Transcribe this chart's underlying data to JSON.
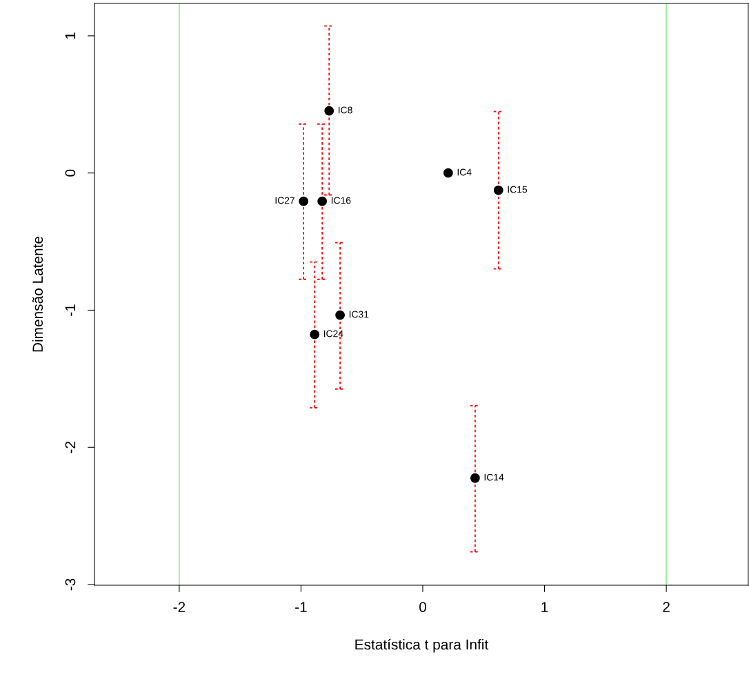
{
  "chart_data": {
    "type": "scatter",
    "xlabel": "Estatística t para Infit",
    "ylabel": "Dimensão Latente",
    "series": [
      {
        "color": "#000000",
        "x": [
          -0.769,
          -0.979,
          -0.826,
          0.209,
          0.622,
          -0.679,
          -0.888,
          0.43
        ],
        "values": [
          0.453,
          -0.206,
          -0.206,
          0.0,
          -0.126,
          -1.036,
          -1.177,
          -2.224
        ],
        "errors": [
          [
            -0.16,
            1.072
          ],
          [
            -0.775,
            0.357
          ],
          [
            -0.775,
            0.357
          ],
          null,
          [
            -0.699,
            0.448
          ],
          [
            -1.575,
            -0.508
          ],
          [
            -1.711,
            -0.649
          ],
          [
            -2.762,
            -1.696
          ]
        ]
      }
    ],
    "annotations": [
      {
        "text": "IC8",
        "x": -0.769,
        "y": 0.453
      },
      {
        "text": "IC27",
        "x": -0.979,
        "y": -0.206
      },
      {
        "text": "IC16",
        "x": -0.826,
        "y": -0.206
      },
      {
        "text": "IC4",
        "x": 0.209,
        "y": 0.0
      },
      {
        "text": "IC15",
        "x": 0.622,
        "y": -0.126
      },
      {
        "text": "IC31",
        "x": -0.679,
        "y": -1.036
      },
      {
        "text": "IC24",
        "x": -0.888,
        "y": -1.177
      },
      {
        "text": "IC14",
        "x": 0.43,
        "y": -2.224
      }
    ],
    "ref_lines": [
      {
        "axis": "x",
        "value": -2,
        "color": "#90ee90"
      },
      {
        "axis": "x",
        "value": 2,
        "color": "#90ee90"
      }
    ],
    "xlim": [
      -2.696,
      2.673
    ],
    "ylim": [
      -3.005,
      1.236
    ],
    "xticks": [
      -2,
      -1,
      0,
      1,
      2
    ],
    "yticks": [
      -3,
      -2,
      -1,
      0,
      1
    ],
    "marker": "circle",
    "grid": false,
    "legend": false
  }
}
